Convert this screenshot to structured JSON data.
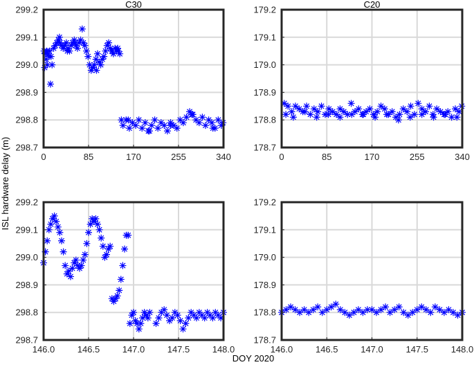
{
  "figure": {
    "ylabel": "ISL hardware delay (m)",
    "xlabel": "DOY 2020",
    "marker_color": "#0000ff"
  },
  "chart_data": [
    {
      "type": "scatter",
      "title": "C30",
      "xlim": [
        0,
        340
      ],
      "ylim": [
        298.7,
        299.2
      ],
      "xticks": [
        0,
        85,
        170,
        255,
        340
      ],
      "xtick_labels": [
        "0",
        "85",
        "170",
        "255",
        "340"
      ],
      "yticks": [
        298.7,
        298.8,
        298.9,
        299.0,
        299.1,
        299.2
      ],
      "ytick_labels": [
        "298.7",
        "298.8",
        "298.9",
        "299.0",
        "299.1",
        "299.2"
      ],
      "grid": true,
      "series": [
        {
          "marker": "asterisk",
          "x": [
            1,
            3,
            5,
            7,
            9,
            11,
            14,
            16,
            19,
            22,
            25,
            28,
            31,
            34,
            37,
            40,
            43,
            46,
            49,
            52,
            55,
            58,
            61,
            64,
            67,
            70,
            73,
            75,
            78,
            81,
            84,
            87,
            90,
            93,
            96,
            99,
            102,
            105,
            108,
            111,
            114,
            117,
            120,
            123,
            126,
            129,
            132,
            135,
            138,
            141,
            144,
            147,
            13,
            2,
            6,
            10,
            30,
            45,
            60,
            100,
            130,
            140,
            150,
            156,
            162,
            168,
            174,
            180,
            186,
            192,
            198,
            204,
            210,
            216,
            222,
            228,
            234,
            240,
            246,
            252,
            258,
            264,
            270,
            276,
            282,
            288,
            294,
            300,
            306,
            312,
            318,
            324,
            330,
            336,
            339,
            160,
            200,
            240,
            280,
            320
          ],
          "y": [
            299.05,
            299.04,
            299.02,
            299.0,
            299.04,
            299.05,
            299.03,
            299.0,
            299.06,
            299.07,
            299.08,
            299.09,
            299.08,
            299.07,
            299.06,
            299.07,
            299.08,
            299.06,
            299.05,
            299.07,
            299.08,
            299.09,
            299.07,
            299.06,
            299.08,
            299.09,
            299.13,
            299.08,
            299.07,
            299.05,
            299.03,
            299.0,
            298.98,
            298.99,
            299.0,
            299.02,
            299.04,
            299.01,
            299.0,
            299.02,
            299.03,
            299.05,
            299.07,
            299.08,
            299.06,
            299.05,
            299.04,
            299.06,
            299.05,
            299.05,
            299.04,
            298.8,
            298.93,
            298.99,
            299.05,
            299.03,
            299.1,
            299.05,
            299.08,
            298.98,
            299.05,
            299.06,
            298.78,
            298.8,
            298.77,
            298.79,
            298.78,
            298.8,
            298.77,
            298.79,
            298.76,
            298.78,
            298.8,
            298.77,
            298.79,
            298.78,
            298.76,
            298.79,
            298.78,
            298.77,
            298.8,
            298.79,
            298.81,
            298.83,
            298.82,
            298.8,
            298.79,
            298.81,
            298.78,
            298.8,
            298.79,
            298.77,
            298.8,
            298.78,
            298.79,
            298.8,
            298.76,
            298.78,
            298.82,
            298.77
          ]
        }
      ]
    },
    {
      "type": "scatter",
      "title": "C20",
      "xlim": [
        0,
        340
      ],
      "ylim": [
        178.7,
        179.2
      ],
      "xticks": [
        0,
        85,
        170,
        255,
        340
      ],
      "xtick_labels": [
        "0",
        "85",
        "170",
        "255",
        "340"
      ],
      "yticks": [
        178.7,
        178.8,
        178.9,
        179.0,
        179.1,
        179.2
      ],
      "ytick_labels": [
        "178.7",
        "178.8",
        "178.9",
        "179.0",
        "179.1",
        "179.2"
      ],
      "grid": true,
      "series": [
        {
          "marker": "asterisk",
          "x": [
            5,
            12,
            19,
            26,
            33,
            40,
            47,
            54,
            61,
            68,
            75,
            82,
            89,
            96,
            103,
            110,
            117,
            124,
            131,
            138,
            145,
            152,
            159,
            166,
            173,
            180,
            187,
            194,
            201,
            208,
            215,
            222,
            229,
            236,
            243,
            250,
            257,
            264,
            271,
            278,
            285,
            292,
            299,
            306,
            313,
            320,
            327,
            334,
            339,
            8,
            22,
            44,
            66,
            88,
            110,
            132,
            154,
            176,
            198,
            220,
            242,
            264,
            286,
            308,
            330
          ],
          "y": [
            178.86,
            178.85,
            178.83,
            178.85,
            178.84,
            178.83,
            178.85,
            178.82,
            178.84,
            178.83,
            178.85,
            178.82,
            178.84,
            178.83,
            178.82,
            178.84,
            178.83,
            178.82,
            178.86,
            178.83,
            178.84,
            178.82,
            178.83,
            178.84,
            178.82,
            178.83,
            178.85,
            178.84,
            178.82,
            178.83,
            178.81,
            178.82,
            178.84,
            178.83,
            178.85,
            178.82,
            178.86,
            178.84,
            178.83,
            178.85,
            178.82,
            178.84,
            178.83,
            178.82,
            178.83,
            178.81,
            178.84,
            178.83,
            178.85,
            178.82,
            178.81,
            178.83,
            178.81,
            178.82,
            178.81,
            178.82,
            178.82,
            178.81,
            178.82,
            178.8,
            178.81,
            178.82,
            178.81,
            178.82,
            178.81
          ]
        }
      ]
    },
    {
      "type": "scatter",
      "title": "",
      "xlim": [
        146.0,
        148.0
      ],
      "ylim": [
        298.7,
        299.2
      ],
      "xticks": [
        146.0,
        146.5,
        147.0,
        147.5,
        148.0
      ],
      "xtick_labels": [
        "146.0",
        "146.5",
        "147.0",
        "147.5",
        "148.0"
      ],
      "yticks": [
        298.7,
        298.8,
        298.9,
        299.0,
        299.1,
        299.2
      ],
      "ytick_labels": [
        "298.7",
        "298.8",
        "298.9",
        "299.0",
        "299.1",
        "299.2"
      ],
      "grid": true,
      "series": [
        {
          "marker": "asterisk",
          "x": [
            146.0,
            146.02,
            146.04,
            146.06,
            146.08,
            146.1,
            146.12,
            146.14,
            146.16,
            146.18,
            146.2,
            146.22,
            146.24,
            146.26,
            146.28,
            146.3,
            146.32,
            146.34,
            146.36,
            146.38,
            146.4,
            146.42,
            146.44,
            146.46,
            146.48,
            146.5,
            146.52,
            146.54,
            146.56,
            146.58,
            146.6,
            146.62,
            146.64,
            146.66,
            146.68,
            146.7,
            146.72,
            146.74,
            146.76,
            146.78,
            146.8,
            146.82,
            146.84,
            146.86,
            146.88,
            146.9,
            146.92,
            146.94,
            146.96,
            146.98,
            147.0,
            147.02,
            147.04,
            147.06,
            147.08,
            147.1,
            147.12,
            147.14,
            147.16,
            147.18,
            147.25,
            147.28,
            147.31,
            147.34,
            147.37,
            147.4,
            147.43,
            147.46,
            147.49,
            147.52,
            147.55,
            147.58,
            147.61,
            147.64,
            147.67,
            147.7,
            147.73,
            147.76,
            147.79,
            147.82,
            147.85,
            147.88,
            147.91,
            147.94,
            147.97,
            148.0
          ],
          "y": [
            298.98,
            299.02,
            299.06,
            299.1,
            299.12,
            299.14,
            299.15,
            299.13,
            299.11,
            299.09,
            299.06,
            299.02,
            298.97,
            298.94,
            298.95,
            298.93,
            298.96,
            298.98,
            298.99,
            298.97,
            298.96,
            298.97,
            298.99,
            299.01,
            299.05,
            299.09,
            299.12,
            299.14,
            299.13,
            299.14,
            299.12,
            299.1,
            299.07,
            299.04,
            299.0,
            299.01,
            299.03,
            299.04,
            298.85,
            298.84,
            298.85,
            298.86,
            298.88,
            298.92,
            298.97,
            299.03,
            299.08,
            299.08,
            298.76,
            298.79,
            298.8,
            298.77,
            298.76,
            298.74,
            298.76,
            298.78,
            298.8,
            298.79,
            298.78,
            298.8,
            298.76,
            298.78,
            298.8,
            298.81,
            298.79,
            298.77,
            298.78,
            298.8,
            298.79,
            298.77,
            298.74,
            298.76,
            298.78,
            298.8,
            298.79,
            298.78,
            298.8,
            298.79,
            298.78,
            298.8,
            298.79,
            298.78,
            298.8,
            298.79,
            298.78,
            298.8
          ]
        }
      ]
    },
    {
      "type": "scatter",
      "title": "",
      "xlim": [
        146.0,
        148.0
      ],
      "ylim": [
        178.7,
        179.2
      ],
      "xticks": [
        146.0,
        146.5,
        147.0,
        147.5,
        148.0
      ],
      "xtick_labels": [
        "146.0",
        "146.5",
        "147.0",
        "147.5",
        "148.0"
      ],
      "yticks": [
        178.7,
        178.8,
        178.9,
        179.0,
        179.1,
        179.2
      ],
      "ytick_labels": [
        "178.7",
        "178.8",
        "178.9",
        "179.0",
        "179.1",
        "179.2"
      ],
      "grid": true,
      "series": [
        {
          "marker": "asterisk",
          "x": [
            146.0,
            146.05,
            146.1,
            146.15,
            146.2,
            146.25,
            146.3,
            146.35,
            146.4,
            146.45,
            146.5,
            146.55,
            146.6,
            146.65,
            146.7,
            146.75,
            146.8,
            146.85,
            146.9,
            146.95,
            147.0,
            147.05,
            147.1,
            147.15,
            147.2,
            147.25,
            147.3,
            147.35,
            147.4,
            147.45,
            147.5,
            147.55,
            147.6,
            147.65,
            147.7,
            147.75,
            147.8,
            147.85,
            147.9,
            147.95,
            148.0
          ],
          "y": [
            178.8,
            178.81,
            178.82,
            178.81,
            178.8,
            178.81,
            178.8,
            178.81,
            178.82,
            178.8,
            178.81,
            178.82,
            178.83,
            178.81,
            178.8,
            178.79,
            178.8,
            178.81,
            178.8,
            178.81,
            178.81,
            178.8,
            178.81,
            178.82,
            178.8,
            178.81,
            178.82,
            178.8,
            178.79,
            178.8,
            178.81,
            178.82,
            178.81,
            178.8,
            178.82,
            178.81,
            178.8,
            178.81,
            178.8,
            178.79,
            178.8
          ]
        }
      ]
    }
  ]
}
